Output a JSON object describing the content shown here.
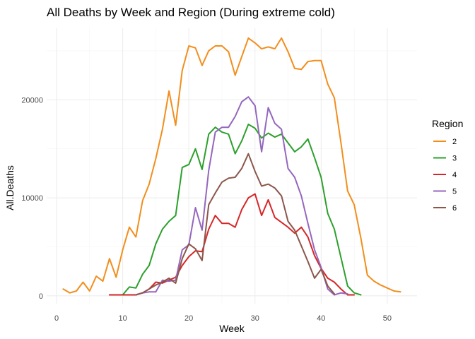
{
  "chart_data": {
    "type": "line",
    "title": "All Deaths by Week and Region (During extreme cold)",
    "xlabel": "Week",
    "ylabel": "All.Deaths",
    "xlim": [
      -1.5,
      54.5
    ],
    "ylim": [
      -800,
      27300
    ],
    "x_ticks": [
      0,
      10,
      20,
      30,
      40,
      50
    ],
    "x_minor_ticks": [
      5,
      15,
      25,
      35,
      45
    ],
    "y_ticks": [
      0,
      10000,
      20000
    ],
    "y_minor_ticks": [
      5000,
      15000,
      25000
    ],
    "grid": true,
    "legend": {
      "title": "Region",
      "position": "right"
    },
    "series": [
      {
        "name": "2",
        "color": "#f28e1c",
        "x": [
          1,
          2,
          3,
          4,
          5,
          6,
          7,
          8,
          9,
          10,
          11,
          12,
          13,
          14,
          15,
          16,
          17,
          18,
          19,
          20,
          21,
          22,
          23,
          24,
          25,
          26,
          27,
          28,
          29,
          30,
          31,
          32,
          33,
          34,
          35,
          36,
          37,
          38,
          39,
          40,
          41,
          42,
          43,
          44,
          45,
          46,
          47,
          48,
          49,
          50,
          51,
          52
        ],
        "y": [
          700,
          300,
          500,
          1400,
          500,
          2000,
          1500,
          3800,
          1900,
          4700,
          7000,
          6000,
          9700,
          11400,
          14000,
          17000,
          20900,
          17400,
          23000,
          25500,
          25300,
          23500,
          25000,
          25500,
          25500,
          24900,
          22500,
          24400,
          26300,
          25800,
          25200,
          25400,
          25200,
          26300,
          24900,
          23200,
          23100,
          23900,
          24000,
          24000,
          21600,
          20200,
          15600,
          10700,
          9300,
          5900,
          2100,
          1500,
          1100,
          800,
          500,
          400
        ]
      },
      {
        "name": "3",
        "color": "#2ca02c",
        "x": [
          8,
          9,
          10,
          11,
          12,
          13,
          14,
          15,
          16,
          17,
          18,
          19,
          20,
          21,
          22,
          23,
          24,
          25,
          26,
          27,
          28,
          29,
          30,
          31,
          32,
          33,
          34,
          35,
          36,
          37,
          38,
          39,
          40,
          41,
          42,
          43,
          44,
          45,
          46
        ],
        "y": [
          100,
          100,
          100,
          900,
          800,
          2200,
          3100,
          5300,
          6800,
          7600,
          8200,
          13100,
          13400,
          15000,
          12900,
          16500,
          17200,
          16700,
          16500,
          14500,
          15800,
          17500,
          17100,
          16100,
          16600,
          16200,
          16500,
          15600,
          14700,
          15200,
          16000,
          14100,
          12100,
          8400,
          6800,
          3900,
          1000,
          300,
          100
        ]
      },
      {
        "name": "4",
        "color": "#d62728",
        "x": [
          8,
          9,
          10,
          11,
          12,
          13,
          14,
          15,
          16,
          17,
          18,
          19,
          20,
          21,
          22,
          23,
          24,
          25,
          26,
          27,
          28,
          29,
          30,
          31,
          32,
          33,
          34,
          35,
          36,
          37,
          38,
          39,
          40,
          41,
          42,
          43,
          44,
          45
        ],
        "y": [
          100,
          100,
          100,
          100,
          100,
          300,
          700,
          1400,
          1300,
          1600,
          1900,
          3100,
          4000,
          4600,
          4500,
          6800,
          8200,
          7400,
          7400,
          7000,
          8800,
          10000,
          10400,
          8200,
          9800,
          8000,
          7500,
          7000,
          6400,
          7000,
          6000,
          4100,
          2800,
          1800,
          1400,
          700,
          100,
          100
        ]
      },
      {
        "name": "5",
        "color": "#9467bd",
        "x": [
          12,
          13,
          14,
          15,
          16,
          17,
          18,
          19,
          20,
          21,
          22,
          23,
          24,
          25,
          26,
          27,
          28,
          29,
          30,
          31,
          32,
          33,
          34,
          35,
          36,
          37,
          38,
          39,
          40,
          41,
          42,
          43,
          44
        ],
        "y": [
          100,
          300,
          400,
          400,
          1600,
          1500,
          1600,
          4700,
          5200,
          9000,
          6700,
          12800,
          16700,
          17200,
          17200,
          18300,
          19800,
          20300,
          19400,
          14700,
          19200,
          17600,
          17000,
          13000,
          12100,
          10200,
          7400,
          4700,
          2900,
          700,
          100,
          300,
          200
        ]
      },
      {
        "name": "6",
        "color": "#8c564b",
        "x": [
          12,
          13,
          14,
          15,
          16,
          17,
          18,
          19,
          20,
          21,
          22,
          23,
          24,
          25,
          26,
          27,
          28,
          29,
          30,
          31,
          32,
          33,
          34,
          35,
          36,
          37,
          38,
          39,
          40,
          41,
          42
        ],
        "y": [
          100,
          300,
          700,
          1100,
          1400,
          1800,
          1300,
          3800,
          5300,
          4800,
          3600,
          9300,
          10500,
          11600,
          12000,
          12100,
          13000,
          14500,
          12700,
          11200,
          11400,
          11000,
          10200,
          7600,
          6700,
          5100,
          3500,
          1800,
          2700,
          1000,
          200
        ]
      }
    ]
  }
}
